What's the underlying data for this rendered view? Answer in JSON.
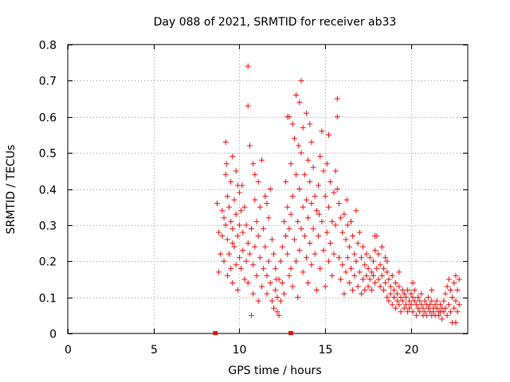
{
  "chart_data": {
    "type": "scatter",
    "title": "Day 088 of 2021, SRMTID for receiver ab33",
    "xlabel": "GPS time / hours",
    "ylabel": "SRMTID / TECUs",
    "xlim": [
      0,
      23.3
    ],
    "ylim": [
      0,
      0.8
    ],
    "xticks": [
      0,
      5,
      10,
      15,
      20
    ],
    "xtick_labels": [
      "0",
      "5",
      "10",
      "15",
      "20"
    ],
    "yticks": [
      0,
      0.1,
      0.2,
      0.3,
      0.4,
      0.5,
      0.6,
      0.7,
      0.8
    ],
    "ytick_labels": [
      "0",
      "0.1",
      "0.2",
      "0.3",
      "0.4",
      "0.5",
      "0.6",
      "0.7",
      "0.8"
    ],
    "grid": true,
    "marker": "plus",
    "color": "#e8100f",
    "gap_markers_x": [
      8.6,
      13.0
    ],
    "points": [
      [
        8.7,
        0.36
      ],
      [
        8.8,
        0.28
      ],
      [
        8.8,
        0.17
      ],
      [
        8.9,
        0.22
      ],
      [
        9.0,
        0.34
      ],
      [
        9.0,
        0.27
      ],
      [
        9.1,
        0.32
      ],
      [
        9.1,
        0.2
      ],
      [
        9.2,
        0.53
      ],
      [
        9.2,
        0.44
      ],
      [
        9.2,
        0.3
      ],
      [
        9.3,
        0.38
      ],
      [
        9.3,
        0.26
      ],
      [
        9.3,
        0.16
      ],
      [
        9.4,
        0.35
      ],
      [
        9.4,
        0.22
      ],
      [
        9.5,
        0.42
      ],
      [
        9.5,
        0.31
      ],
      [
        9.5,
        0.18
      ],
      [
        9.6,
        0.49
      ],
      [
        9.6,
        0.29
      ],
      [
        9.6,
        0.14
      ],
      [
        9.7,
        0.37
      ],
      [
        9.7,
        0.24
      ],
      [
        9.8,
        0.45
      ],
      [
        9.8,
        0.33
      ],
      [
        9.8,
        0.19
      ],
      [
        9.9,
        0.41
      ],
      [
        9.9,
        0.27
      ],
      [
        9.9,
        0.12
      ],
      [
        10.0,
        0.39
      ],
      [
        10.0,
        0.3
      ],
      [
        10.0,
        0.21
      ],
      [
        10.1,
        0.34
      ],
      [
        10.1,
        0.18
      ],
      [
        10.2,
        0.28
      ],
      [
        10.2,
        0.23
      ],
      [
        10.3,
        0.35
      ],
      [
        10.3,
        0.15
      ],
      [
        10.4,
        0.3
      ],
      [
        10.4,
        0.2
      ],
      [
        10.5,
        0.74
      ],
      [
        10.5,
        0.63
      ],
      [
        10.5,
        0.25
      ],
      [
        10.5,
        0.14
      ],
      [
        10.6,
        0.52
      ],
      [
        10.6,
        0.22
      ],
      [
        10.7,
        0.29
      ],
      [
        10.7,
        0.05
      ],
      [
        10.8,
        0.47
      ],
      [
        10.8,
        0.19
      ],
      [
        10.8,
        0.11
      ],
      [
        10.9,
        0.37
      ],
      [
        10.9,
        0.24
      ],
      [
        11.0,
        0.31
      ],
      [
        11.0,
        0.16
      ],
      [
        11.1,
        0.42
      ],
      [
        11.1,
        0.27
      ],
      [
        11.1,
        0.09
      ],
      [
        11.2,
        0.35
      ],
      [
        11.2,
        0.21
      ],
      [
        11.3,
        0.48
      ],
      [
        11.3,
        0.13
      ],
      [
        11.4,
        0.29
      ],
      [
        11.4,
        0.18
      ],
      [
        11.5,
        0.38
      ],
      [
        11.5,
        0.24
      ],
      [
        11.6,
        0.16
      ],
      [
        11.6,
        0.11
      ],
      [
        11.7,
        0.32
      ],
      [
        11.7,
        0.2
      ],
      [
        11.8,
        0.4
      ],
      [
        11.8,
        0.14
      ],
      [
        11.9,
        0.26
      ],
      [
        11.9,
        0.09
      ],
      [
        12.0,
        0.22
      ],
      [
        12.0,
        0.07
      ],
      [
        12.1,
        0.18
      ],
      [
        12.1,
        0.12
      ],
      [
        12.2,
        0.1
      ],
      [
        12.2,
        0.06
      ],
      [
        12.3,
        0.15
      ],
      [
        12.3,
        0.05
      ],
      [
        12.4,
        0.2
      ],
      [
        12.4,
        0.09
      ],
      [
        12.5,
        0.24
      ],
      [
        12.5,
        0.14
      ],
      [
        12.6,
        0.31
      ],
      [
        12.6,
        0.11
      ],
      [
        12.7,
        0.42
      ],
      [
        12.7,
        0.27
      ],
      [
        12.8,
        0.6
      ],
      [
        12.8,
        0.35
      ],
      [
        12.8,
        0.22
      ],
      [
        12.9,
        0.6
      ],
      [
        12.9,
        0.29
      ],
      [
        13.0,
        0.47
      ],
      [
        13.0,
        0.33
      ],
      [
        13.0,
        0.18
      ],
      [
        13.1,
        0.58
      ],
      [
        13.1,
        0.38
      ],
      [
        13.1,
        0.13
      ],
      [
        13.2,
        0.54
      ],
      [
        13.2,
        0.26
      ],
      [
        13.3,
        0.66
      ],
      [
        13.3,
        0.44
      ],
      [
        13.3,
        0.2
      ],
      [
        13.4,
        0.31
      ],
      [
        13.4,
        0.1
      ],
      [
        13.5,
        0.64
      ],
      [
        13.5,
        0.4
      ],
      [
        13.5,
        0.23
      ],
      [
        13.6,
        0.7
      ],
      [
        13.6,
        0.5
      ],
      [
        13.6,
        0.29
      ],
      [
        13.7,
        0.57
      ],
      [
        13.7,
        0.35
      ],
      [
        13.7,
        0.17
      ],
      [
        13.8,
        0.44
      ],
      [
        13.8,
        0.27
      ],
      [
        13.9,
        0.61
      ],
      [
        13.9,
        0.37
      ],
      [
        13.9,
        0.21
      ],
      [
        14.0,
        0.48
      ],
      [
        14.0,
        0.32
      ],
      [
        14.0,
        0.14
      ],
      [
        14.1,
        0.42
      ],
      [
        14.1,
        0.25
      ],
      [
        14.2,
        0.53
      ],
      [
        14.2,
        0.36
      ],
      [
        14.2,
        0.19
      ],
      [
        14.3,
        0.46
      ],
      [
        14.3,
        0.29
      ],
      [
        14.4,
        0.38
      ],
      [
        14.4,
        0.22
      ],
      [
        14.5,
        0.34
      ],
      [
        14.5,
        0.12
      ],
      [
        14.6,
        0.41
      ],
      [
        14.6,
        0.27
      ],
      [
        14.7,
        0.49
      ],
      [
        14.7,
        0.18
      ],
      [
        14.8,
        0.56
      ],
      [
        14.8,
        0.31
      ],
      [
        14.9,
        0.45
      ],
      [
        14.9,
        0.23
      ],
      [
        15.0,
        0.38
      ],
      [
        15.0,
        0.13
      ],
      [
        15.1,
        0.47
      ],
      [
        15.1,
        0.28
      ],
      [
        15.2,
        0.35
      ],
      [
        15.2,
        0.2
      ],
      [
        15.3,
        0.42
      ],
      [
        15.3,
        0.25
      ],
      [
        15.4,
        0.31
      ],
      [
        15.4,
        0.16
      ],
      [
        15.5,
        0.39
      ],
      [
        15.5,
        0.22
      ],
      [
        15.6,
        0.45
      ],
      [
        15.6,
        0.3
      ],
      [
        15.7,
        0.65
      ],
      [
        15.7,
        0.6
      ],
      [
        15.7,
        0.4
      ],
      [
        15.8,
        0.36
      ],
      [
        15.8,
        0.21
      ],
      [
        15.9,
        0.32
      ],
      [
        15.9,
        0.15
      ],
      [
        16.0,
        0.28
      ],
      [
        16.0,
        0.19
      ],
      [
        16.1,
        0.33
      ],
      [
        16.1,
        0.11
      ],
      [
        16.2,
        0.26
      ],
      [
        16.2,
        0.17
      ],
      [
        16.3,
        0.3
      ],
      [
        16.3,
        0.21
      ],
      [
        16.4,
        0.24
      ],
      [
        16.4,
        0.14
      ],
      [
        16.5,
        0.31
      ],
      [
        16.5,
        0.18
      ],
      [
        16.6,
        0.27
      ],
      [
        16.6,
        0.12
      ],
      [
        16.7,
        0.22
      ],
      [
        16.7,
        0.16
      ],
      [
        16.8,
        0.34
      ],
      [
        16.8,
        0.2
      ],
      [
        16.9,
        0.25
      ],
      [
        16.9,
        0.13
      ],
      [
        17.0,
        0.28
      ],
      [
        17.0,
        0.17
      ],
      [
        17.1,
        0.21
      ],
      [
        17.1,
        0.11
      ],
      [
        17.2,
        0.24
      ],
      [
        17.2,
        0.15
      ],
      [
        17.3,
        0.19
      ],
      [
        17.3,
        0.12
      ],
      [
        17.4,
        0.22
      ],
      [
        17.4,
        0.16
      ],
      [
        17.5,
        0.18
      ],
      [
        17.5,
        0.13
      ],
      [
        17.6,
        0.21
      ],
      [
        17.6,
        0.15
      ],
      [
        17.7,
        0.17
      ],
      [
        17.7,
        0.12
      ],
      [
        17.8,
        0.2
      ],
      [
        17.8,
        0.16
      ],
      [
        17.9,
        0.23
      ],
      [
        17.9,
        0.14
      ],
      [
        18.0,
        0.27
      ],
      [
        18.0,
        0.18
      ],
      [
        18.1,
        0.22
      ],
      [
        18.1,
        0.15
      ],
      [
        18.2,
        0.19
      ],
      [
        18.2,
        0.13
      ],
      [
        18.3,
        0.24
      ],
      [
        18.3,
        0.16
      ],
      [
        18.4,
        0.18
      ],
      [
        18.4,
        0.12
      ],
      [
        18.5,
        0.21
      ],
      [
        18.5,
        0.14
      ],
      [
        18.6,
        0.17
      ],
      [
        18.6,
        0.1
      ],
      [
        18.7,
        0.15
      ],
      [
        18.7,
        0.09
      ],
      [
        18.8,
        0.13
      ],
      [
        18.8,
        0.11
      ],
      [
        18.9,
        0.16
      ],
      [
        18.9,
        0.08
      ],
      [
        19.0,
        0.12
      ],
      [
        19.0,
        0.1
      ],
      [
        19.1,
        0.14
      ],
      [
        19.1,
        0.07
      ],
      [
        19.2,
        0.11
      ],
      [
        19.2,
        0.09
      ],
      [
        19.3,
        0.13
      ],
      [
        19.3,
        0.08
      ],
      [
        19.4,
        0.1
      ],
      [
        19.4,
        0.06
      ],
      [
        19.5,
        0.12
      ],
      [
        19.5,
        0.09
      ],
      [
        19.6,
        0.11
      ],
      [
        19.6,
        0.07
      ],
      [
        19.7,
        0.1
      ],
      [
        19.7,
        0.08
      ],
      [
        19.8,
        0.12
      ],
      [
        19.8,
        0.06
      ],
      [
        19.9,
        0.09
      ],
      [
        19.9,
        0.07
      ],
      [
        20.0,
        0.11
      ],
      [
        20.0,
        0.08
      ],
      [
        20.1,
        0.1
      ],
      [
        20.1,
        0.06
      ],
      [
        20.2,
        0.12
      ],
      [
        20.2,
        0.09
      ],
      [
        20.3,
        0.08
      ],
      [
        20.3,
        0.05
      ],
      [
        20.4,
        0.1
      ],
      [
        20.4,
        0.07
      ],
      [
        20.5,
        0.09
      ],
      [
        20.5,
        0.06
      ],
      [
        20.6,
        0.11
      ],
      [
        20.6,
        0.08
      ],
      [
        20.7,
        0.07
      ],
      [
        20.7,
        0.05
      ],
      [
        20.8,
        0.09
      ],
      [
        20.8,
        0.06
      ],
      [
        20.9,
        0.08
      ],
      [
        20.9,
        0.05
      ],
      [
        21.0,
        0.1
      ],
      [
        21.0,
        0.07
      ],
      [
        21.1,
        0.08
      ],
      [
        21.1,
        0.06
      ],
      [
        21.2,
        0.09
      ],
      [
        21.2,
        0.05
      ],
      [
        21.3,
        0.07
      ],
      [
        21.3,
        0.06
      ],
      [
        21.4,
        0.08
      ],
      [
        21.4,
        0.05
      ],
      [
        21.5,
        0.09
      ],
      [
        21.5,
        0.07
      ],
      [
        21.6,
        0.06
      ],
      [
        21.6,
        0.05
      ],
      [
        21.7,
        0.08
      ],
      [
        21.7,
        0.06
      ],
      [
        21.8,
        0.07
      ],
      [
        21.8,
        0.04
      ],
      [
        21.9,
        0.09
      ],
      [
        21.9,
        0.06
      ],
      [
        22.0,
        0.11
      ],
      [
        22.0,
        0.07
      ],
      [
        22.1,
        0.13
      ],
      [
        22.1,
        0.05
      ],
      [
        22.2,
        0.15
      ],
      [
        22.2,
        0.08
      ],
      [
        22.3,
        0.12
      ],
      [
        22.3,
        0.06
      ],
      [
        22.4,
        0.1
      ],
      [
        22.4,
        0.03
      ],
      [
        22.5,
        0.14
      ],
      [
        22.5,
        0.07
      ],
      [
        22.6,
        0.16
      ],
      [
        22.6,
        0.09
      ],
      [
        22.7,
        0.12
      ],
      [
        22.7,
        0.06
      ],
      [
        22.8,
        0.15
      ],
      [
        22.8,
        0.08
      ],
      [
        9.25,
        0.47
      ],
      [
        9.6,
        0.25
      ],
      [
        10.15,
        0.41
      ],
      [
        10.9,
        0.44
      ],
      [
        11.6,
        0.36
      ],
      [
        12.15,
        0.15
      ],
      [
        12.9,
        0.16
      ],
      [
        13.45,
        0.52
      ],
      [
        14.1,
        0.58
      ],
      [
        14.65,
        0.33
      ],
      [
        15.2,
        0.55
      ],
      [
        16.25,
        0.37
      ],
      [
        17.9,
        0.27
      ],
      [
        18.6,
        0.2
      ],
      [
        19.3,
        0.17
      ],
      [
        20.1,
        0.14
      ],
      [
        21.2,
        0.12
      ],
      [
        22.6,
        0.03
      ]
    ]
  }
}
